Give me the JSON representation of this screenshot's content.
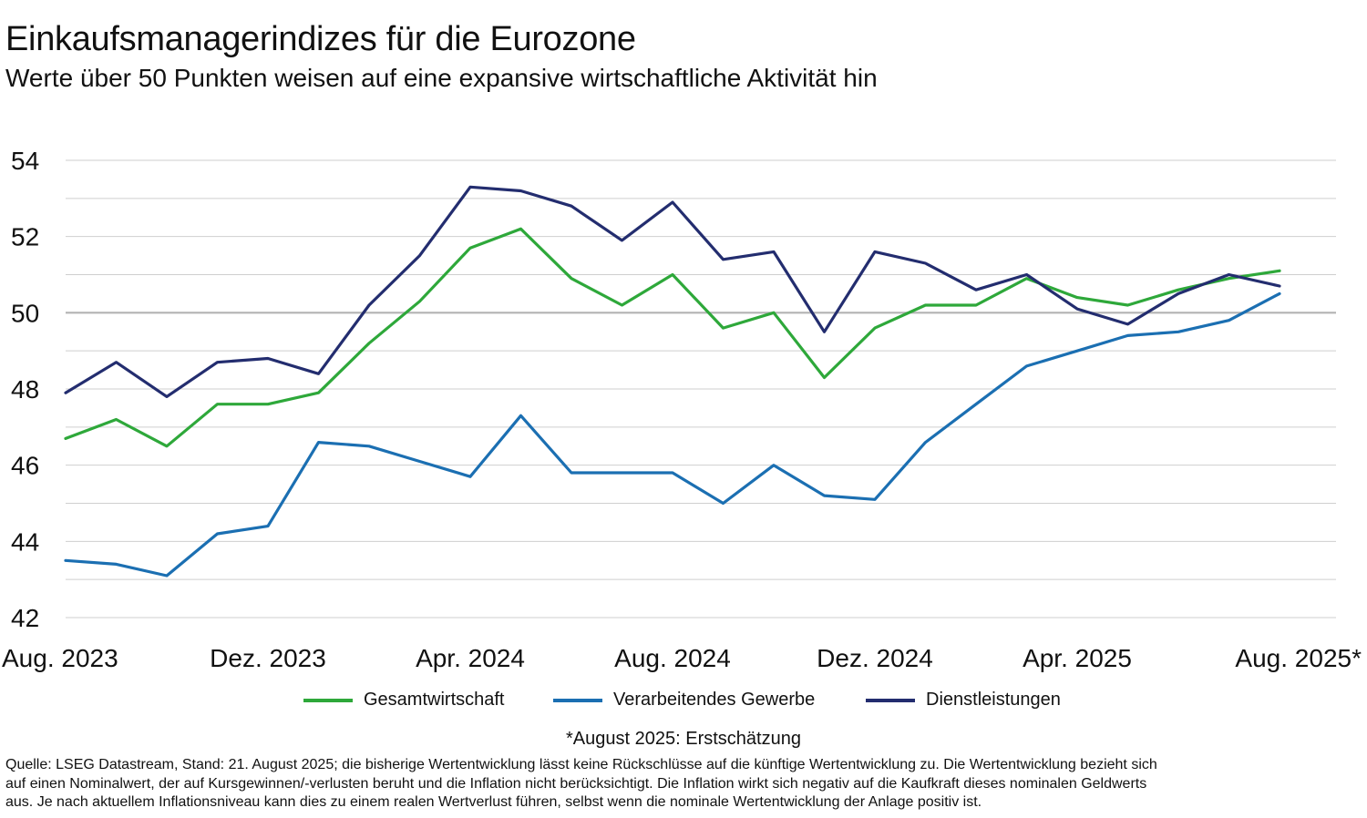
{
  "title": "Einkaufsmanagerindizes für die Eurozone",
  "subtitle": "Werte über 50 Punkten weisen auf eine expansive wirtschaftliche Aktivität hin",
  "note": "*August 2025: Erstschätzung",
  "source_lines": [
    "Quelle: LSEG Datastream, Stand: 21. August 2025; die bisherige Wertentwicklung lässt keine Rückschlüsse auf die künftige Wertentwicklung zu. Die Wertentwicklung bezieht sich",
    "auf einen Nominalwert, der auf Kursgewinnen/-verlusten beruht und die Inflation nicht berücksichtigt. Die Inflation wirkt sich negativ auf die Kaufkraft dieses nominalen Geldwerts",
    "aus. Je nach aktuellem Inflationsniveau kann dies zu einem realen Wertverlust führen, selbst wenn die nominale Wertentwicklung der Anlage positiv ist."
  ],
  "chart_data": {
    "type": "line",
    "x": [
      "Aug. 2023",
      "Sep. 2023",
      "Okt. 2023",
      "Nov. 2023",
      "Dez. 2023",
      "Jan. 2024",
      "Feb. 2024",
      "Mär. 2024",
      "Apr. 2024",
      "Mai 2024",
      "Jun. 2024",
      "Jul. 2024",
      "Aug. 2024",
      "Sep. 2024",
      "Okt. 2024",
      "Nov. 2024",
      "Dez. 2024",
      "Jan. 2025",
      "Feb. 2025",
      "Mär. 2025",
      "Apr. 2025",
      "Mai 2025",
      "Jun. 2025",
      "Jul. 2025",
      "Aug. 2025*"
    ],
    "x_tick_labels": [
      "Aug. 2023",
      "Dez. 2023",
      "Apr. 2024",
      "Aug. 2024",
      "Dez. 2024",
      "Apr. 2025",
      "Aug. 2025*"
    ],
    "x_tick_indices": [
      0,
      4,
      8,
      12,
      16,
      20,
      24
    ],
    "y_ticks": [
      42,
      44,
      46,
      48,
      50,
      52,
      54
    ],
    "ylim": [
      42,
      54
    ],
    "reference_line": 50,
    "grid": true,
    "legend_position": "bottom",
    "series": [
      {
        "name": "Gesamtwirtschaft",
        "color": "#2ea83a",
        "values": [
          46.7,
          47.2,
          46.5,
          47.6,
          47.6,
          47.9,
          49.2,
          50.3,
          51.7,
          52.2,
          50.9,
          50.2,
          51.0,
          49.6,
          50.0,
          48.3,
          49.6,
          50.2,
          50.2,
          50.9,
          50.4,
          50.2,
          50.6,
          50.9,
          51.1
        ]
      },
      {
        "name": "Verarbeitendes Gewerbe",
        "color": "#1b6fb2",
        "values": [
          43.5,
          43.4,
          43.1,
          44.2,
          44.4,
          46.6,
          46.5,
          46.1,
          45.7,
          47.3,
          45.8,
          45.8,
          45.8,
          45.0,
          46.0,
          45.2,
          45.1,
          46.6,
          47.6,
          48.6,
          49.0,
          49.4,
          49.5,
          49.8,
          50.5
        ]
      },
      {
        "name": "Dienstleistungen",
        "color": "#232d6f",
        "values": [
          47.9,
          48.7,
          47.8,
          48.7,
          48.8,
          48.4,
          50.2,
          51.5,
          53.3,
          53.2,
          52.8,
          51.9,
          52.9,
          51.4,
          51.6,
          49.5,
          51.6,
          51.3,
          50.6,
          51.0,
          50.1,
          49.7,
          50.5,
          51.0,
          50.7
        ]
      }
    ]
  }
}
